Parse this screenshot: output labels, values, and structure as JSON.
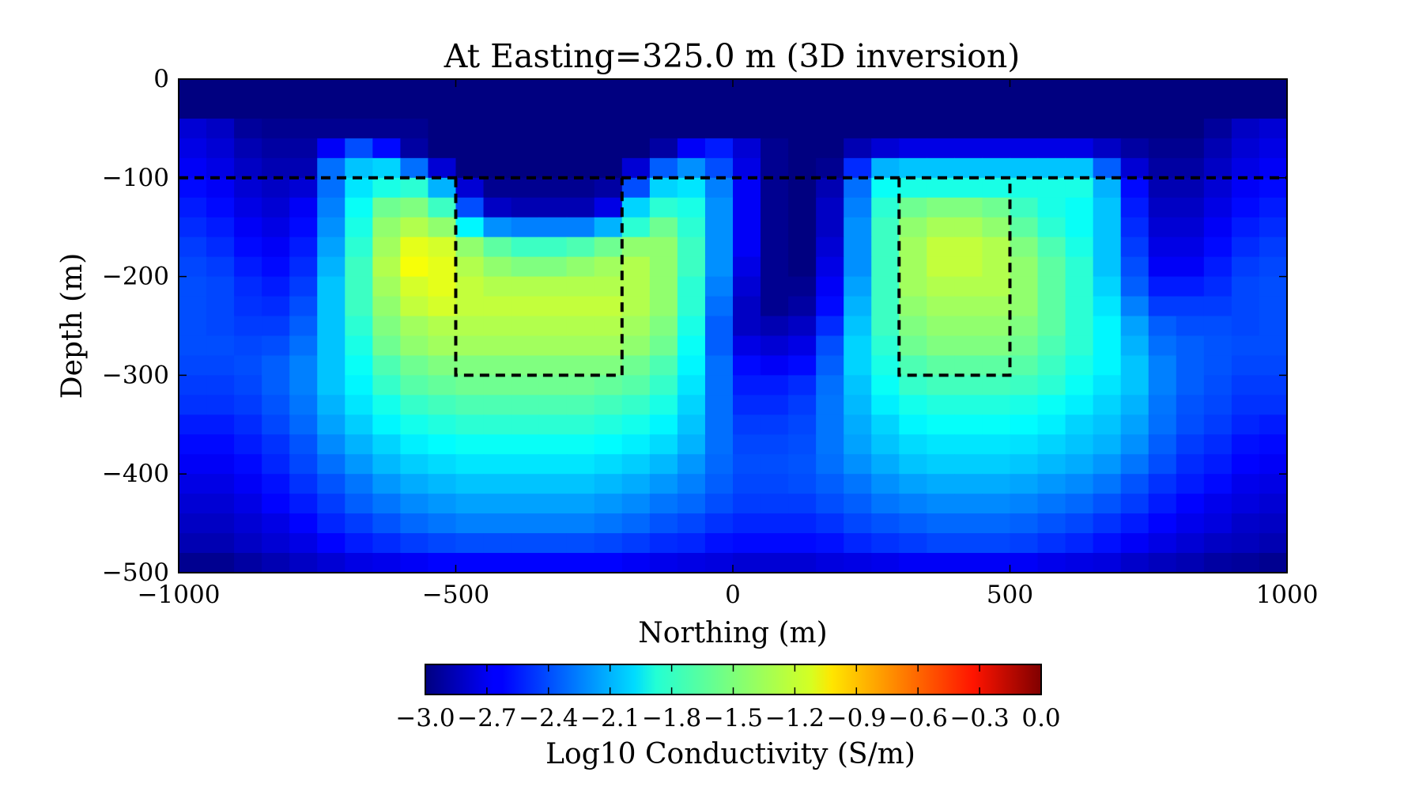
{
  "chart_data": {
    "type": "heatmap",
    "title": "At Easting=325.0 m (3D inversion)",
    "xlabel": "Northing (m)",
    "ylabel": "Depth (m)",
    "xlim": [
      -1000,
      1000
    ],
    "ylim": [
      -500,
      0
    ],
    "xticks": [
      "−1000",
      "−500",
      "0",
      "500",
      "1000"
    ],
    "yticks": [
      "0",
      "−100",
      "−200",
      "−300",
      "−400",
      "−500"
    ],
    "grid": false,
    "colormap": "jet",
    "colorbar": {
      "label": "Log10 Conductivity (S/m)",
      "range": [
        -3.0,
        0.0
      ],
      "ticks": [
        "−3.0",
        "−2.7",
        "−2.4",
        "−2.1",
        "−1.8",
        "−1.5",
        "−1.2",
        "−0.9",
        "−0.6",
        "−0.3",
        "0.0"
      ],
      "orientation": "horizontal"
    },
    "x_edges": [
      -1000,
      -950,
      -900,
      -850,
      -800,
      -750,
      -700,
      -650,
      -600,
      -550,
      -500,
      -450,
      -400,
      -350,
      -300,
      -250,
      -200,
      -150,
      -100,
      -50,
      0,
      50,
      100,
      150,
      200,
      250,
      300,
      350,
      400,
      450,
      500,
      550,
      600,
      650,
      700,
      750,
      800,
      850,
      900,
      950,
      1000
    ],
    "y_edges": [
      0,
      -40,
      -60,
      -80,
      -100,
      -120,
      -140,
      -160,
      -180,
      -200,
      -220,
      -240,
      -260,
      -280,
      -300,
      -320,
      -340,
      -360,
      -380,
      -400,
      -420,
      -440,
      -460,
      -480,
      -500
    ],
    "log_conductivity": [
      [
        -3.0,
        -3.0,
        -3.0,
        -3.0,
        -3.0,
        -3.0,
        -3.0,
        -3.0,
        -3.0,
        -3.0,
        -3.0,
        -3.0,
        -3.0,
        -3.0,
        -3.0,
        -3.0,
        -3.0,
        -3.0,
        -3.0,
        -3.0,
        -3.0,
        -3.0,
        -3.0,
        -3.0,
        -3.0,
        -3.0,
        -3.0,
        -3.0,
        -3.0,
        -3.0,
        -3.0,
        -3.0,
        -3.0,
        -3.0,
        -3.0,
        -3.0,
        -3.0,
        -3.0,
        -3.0,
        -3.0
      ],
      [
        -2.75,
        -2.8,
        -2.92,
        -2.95,
        -2.95,
        -2.95,
        -2.95,
        -2.95,
        -2.95,
        -3.0,
        -3.0,
        -3.0,
        -3.0,
        -3.0,
        -3.0,
        -3.0,
        -3.0,
        -3.0,
        -3.0,
        -3.0,
        -3.0,
        -3.0,
        -3.0,
        -3.0,
        -3.0,
        -3.0,
        -3.0,
        -3.0,
        -3.0,
        -3.0,
        -3.0,
        -3.0,
        -3.0,
        -3.0,
        -3.0,
        -3.0,
        -3.0,
        -2.92,
        -2.8,
        -2.75
      ],
      [
        -2.7,
        -2.75,
        -2.85,
        -2.9,
        -2.9,
        -2.65,
        -2.4,
        -2.6,
        -2.9,
        -3.0,
        -3.0,
        -3.0,
        -3.0,
        -3.0,
        -3.0,
        -3.0,
        -3.0,
        -2.9,
        -2.65,
        -2.55,
        -2.75,
        -2.95,
        -3.0,
        -3.0,
        -2.85,
        -2.75,
        -2.7,
        -2.7,
        -2.7,
        -2.7,
        -2.7,
        -2.7,
        -2.7,
        -2.8,
        -2.9,
        -2.95,
        -2.95,
        -2.85,
        -2.75,
        -2.7
      ],
      [
        -2.65,
        -2.7,
        -2.8,
        -2.85,
        -2.85,
        -2.3,
        -2.05,
        -2.0,
        -2.3,
        -2.75,
        -3.0,
        -3.0,
        -3.0,
        -3.0,
        -3.0,
        -3.0,
        -2.75,
        -2.35,
        -2.2,
        -2.4,
        -2.7,
        -2.95,
        -3.0,
        -2.95,
        -2.5,
        -2.1,
        -2.05,
        -2.05,
        -2.05,
        -2.05,
        -2.05,
        -2.05,
        -2.05,
        -2.35,
        -2.75,
        -2.9,
        -2.9,
        -2.8,
        -2.7,
        -2.65
      ],
      [
        -2.6,
        -2.65,
        -2.75,
        -2.8,
        -2.75,
        -2.3,
        -1.95,
        -1.8,
        -1.75,
        -2.1,
        -2.75,
        -2.95,
        -2.95,
        -2.95,
        -2.95,
        -2.9,
        -2.4,
        -2.0,
        -1.95,
        -2.25,
        -2.65,
        -2.95,
        -3.0,
        -2.85,
        -2.3,
        -1.85,
        -1.8,
        -1.8,
        -1.8,
        -1.8,
        -1.8,
        -1.8,
        -1.8,
        -2.1,
        -2.6,
        -2.85,
        -2.85,
        -2.75,
        -2.65,
        -2.6
      ],
      [
        -2.55,
        -2.6,
        -2.7,
        -2.75,
        -2.65,
        -2.25,
        -1.85,
        -1.55,
        -1.5,
        -1.7,
        -2.4,
        -2.8,
        -2.85,
        -2.85,
        -2.85,
        -2.7,
        -2.0,
        -1.75,
        -1.8,
        -2.2,
        -2.65,
        -2.95,
        -3.0,
        -2.8,
        -2.25,
        -1.75,
        -1.55,
        -1.5,
        -1.5,
        -1.55,
        -1.7,
        -1.8,
        -1.85,
        -2.05,
        -2.55,
        -2.8,
        -2.8,
        -2.7,
        -2.6,
        -2.55
      ],
      [
        -2.5,
        -2.55,
        -2.65,
        -2.7,
        -2.6,
        -2.2,
        -1.8,
        -1.45,
        -1.35,
        -1.45,
        -1.9,
        -2.2,
        -2.25,
        -2.25,
        -2.25,
        -2.1,
        -1.75,
        -1.55,
        -1.75,
        -2.2,
        -2.65,
        -2.95,
        -3.0,
        -2.8,
        -2.2,
        -1.7,
        -1.45,
        -1.38,
        -1.38,
        -1.45,
        -1.6,
        -1.75,
        -1.85,
        -2.05,
        -2.5,
        -2.75,
        -2.75,
        -2.65,
        -2.55,
        -2.5
      ],
      [
        -2.45,
        -2.5,
        -2.6,
        -2.65,
        -2.55,
        -2.15,
        -1.75,
        -1.4,
        -1.2,
        -1.25,
        -1.45,
        -1.6,
        -1.7,
        -1.7,
        -1.65,
        -1.55,
        -1.45,
        -1.45,
        -1.7,
        -2.2,
        -2.65,
        -2.95,
        -3.0,
        -2.75,
        -2.2,
        -1.7,
        -1.4,
        -1.3,
        -1.3,
        -1.35,
        -1.5,
        -1.65,
        -1.8,
        -2.05,
        -2.45,
        -2.7,
        -2.7,
        -2.6,
        -2.5,
        -2.45
      ],
      [
        -2.42,
        -2.45,
        -2.55,
        -2.6,
        -2.5,
        -2.1,
        -1.7,
        -1.35,
        -1.15,
        -1.2,
        -1.35,
        -1.45,
        -1.5,
        -1.5,
        -1.45,
        -1.4,
        -1.35,
        -1.45,
        -1.7,
        -2.2,
        -2.7,
        -2.95,
        -3.0,
        -2.7,
        -2.2,
        -1.7,
        -1.4,
        -1.3,
        -1.3,
        -1.35,
        -1.45,
        -1.6,
        -1.75,
        -2.05,
        -2.4,
        -2.65,
        -2.65,
        -2.55,
        -2.45,
        -2.42
      ],
      [
        -2.4,
        -2.42,
        -2.5,
        -2.55,
        -2.45,
        -2.05,
        -1.7,
        -1.4,
        -1.25,
        -1.2,
        -1.3,
        -1.35,
        -1.35,
        -1.35,
        -1.35,
        -1.35,
        -1.35,
        -1.45,
        -1.75,
        -2.25,
        -2.75,
        -2.95,
        -2.95,
        -2.65,
        -2.15,
        -1.7,
        -1.4,
        -1.35,
        -1.35,
        -1.35,
        -1.45,
        -1.6,
        -1.75,
        -2.0,
        -2.35,
        -2.55,
        -2.55,
        -2.5,
        -2.42,
        -2.4
      ],
      [
        -2.4,
        -2.42,
        -2.48,
        -2.5,
        -2.4,
        -2.05,
        -1.7,
        -1.45,
        -1.3,
        -1.25,
        -1.3,
        -1.3,
        -1.3,
        -1.3,
        -1.3,
        -1.3,
        -1.35,
        -1.45,
        -1.75,
        -2.3,
        -2.8,
        -2.95,
        -2.9,
        -2.6,
        -2.1,
        -1.7,
        -1.45,
        -1.4,
        -1.4,
        -1.4,
        -1.45,
        -1.6,
        -1.75,
        -1.95,
        -2.25,
        -2.45,
        -2.45,
        -2.45,
        -2.42,
        -2.4
      ],
      [
        -2.4,
        -2.42,
        -2.45,
        -2.45,
        -2.35,
        -2.05,
        -1.75,
        -1.5,
        -1.4,
        -1.35,
        -1.35,
        -1.35,
        -1.35,
        -1.35,
        -1.35,
        -1.35,
        -1.4,
        -1.5,
        -1.8,
        -2.35,
        -2.8,
        -2.85,
        -2.8,
        -2.5,
        -2.05,
        -1.7,
        -1.5,
        -1.45,
        -1.45,
        -1.45,
        -1.5,
        -1.6,
        -1.75,
        -1.9,
        -2.15,
        -2.35,
        -2.4,
        -2.4,
        -2.42,
        -2.4
      ],
      [
        -2.4,
        -2.4,
        -2.42,
        -2.4,
        -2.3,
        -2.05,
        -1.8,
        -1.55,
        -1.45,
        -1.4,
        -1.4,
        -1.4,
        -1.4,
        -1.4,
        -1.4,
        -1.4,
        -1.45,
        -1.55,
        -1.85,
        -2.35,
        -2.7,
        -2.75,
        -2.7,
        -2.4,
        -2.0,
        -1.75,
        -1.55,
        -1.5,
        -1.5,
        -1.5,
        -1.55,
        -1.65,
        -1.75,
        -1.9,
        -2.1,
        -2.3,
        -2.35,
        -2.38,
        -2.4,
        -2.4
      ],
      [
        -2.42,
        -2.42,
        -2.4,
        -2.35,
        -2.25,
        -2.05,
        -1.85,
        -1.65,
        -1.55,
        -1.5,
        -1.5,
        -1.5,
        -1.5,
        -1.5,
        -1.5,
        -1.5,
        -1.55,
        -1.65,
        -1.9,
        -2.3,
        -2.6,
        -2.65,
        -2.6,
        -2.35,
        -2.0,
        -1.8,
        -1.65,
        -1.6,
        -1.6,
        -1.6,
        -1.62,
        -1.7,
        -1.8,
        -1.9,
        -2.05,
        -2.25,
        -2.35,
        -2.38,
        -2.42,
        -2.42
      ],
      [
        -2.45,
        -2.45,
        -2.42,
        -2.35,
        -2.25,
        -2.05,
        -1.9,
        -1.72,
        -1.62,
        -1.58,
        -1.55,
        -1.55,
        -1.55,
        -1.55,
        -1.55,
        -1.58,
        -1.62,
        -1.72,
        -1.95,
        -2.3,
        -2.55,
        -2.55,
        -2.5,
        -2.3,
        -2.05,
        -1.85,
        -1.72,
        -1.68,
        -1.68,
        -1.68,
        -1.7,
        -1.75,
        -1.85,
        -1.95,
        -2.05,
        -2.25,
        -2.35,
        -2.4,
        -2.45,
        -2.45
      ],
      [
        -2.48,
        -2.48,
        -2.45,
        -2.38,
        -2.28,
        -2.1,
        -1.95,
        -1.82,
        -1.72,
        -1.68,
        -1.65,
        -1.65,
        -1.65,
        -1.65,
        -1.65,
        -1.68,
        -1.72,
        -1.8,
        -2.0,
        -2.3,
        -2.5,
        -2.5,
        -2.45,
        -2.28,
        -2.08,
        -1.92,
        -1.82,
        -1.78,
        -1.78,
        -1.78,
        -1.8,
        -1.85,
        -1.92,
        -2.0,
        -2.1,
        -2.28,
        -2.38,
        -2.42,
        -2.48,
        -2.48
      ],
      [
        -2.55,
        -2.55,
        -2.5,
        -2.42,
        -2.32,
        -2.15,
        -2.02,
        -1.9,
        -1.82,
        -1.78,
        -1.75,
        -1.75,
        -1.75,
        -1.75,
        -1.75,
        -1.78,
        -1.82,
        -1.9,
        -2.05,
        -2.3,
        -2.45,
        -2.45,
        -2.42,
        -2.28,
        -2.12,
        -2.0,
        -1.9,
        -1.86,
        -1.86,
        -1.86,
        -1.88,
        -1.92,
        -2.0,
        -2.05,
        -2.15,
        -2.3,
        -2.4,
        -2.45,
        -2.52,
        -2.55
      ],
      [
        -2.6,
        -2.6,
        -2.55,
        -2.48,
        -2.38,
        -2.22,
        -2.1,
        -2.0,
        -1.92,
        -1.88,
        -1.85,
        -1.85,
        -1.85,
        -1.85,
        -1.85,
        -1.88,
        -1.92,
        -1.98,
        -2.1,
        -2.3,
        -2.42,
        -2.42,
        -2.4,
        -2.28,
        -2.15,
        -2.05,
        -1.98,
        -1.95,
        -1.95,
        -1.95,
        -1.96,
        -2.0,
        -2.05,
        -2.1,
        -2.2,
        -2.35,
        -2.45,
        -2.5,
        -2.58,
        -2.6
      ],
      [
        -2.65,
        -2.65,
        -2.6,
        -2.52,
        -2.42,
        -2.3,
        -2.18,
        -2.08,
        -2.02,
        -1.98,
        -1.95,
        -1.95,
        -1.95,
        -1.95,
        -1.95,
        -1.98,
        -2.02,
        -2.08,
        -2.18,
        -2.32,
        -2.4,
        -2.4,
        -2.38,
        -2.3,
        -2.2,
        -2.12,
        -2.05,
        -2.02,
        -2.02,
        -2.02,
        -2.04,
        -2.08,
        -2.12,
        -2.18,
        -2.28,
        -2.4,
        -2.5,
        -2.55,
        -2.62,
        -2.65
      ],
      [
        -2.7,
        -2.7,
        -2.65,
        -2.58,
        -2.48,
        -2.38,
        -2.28,
        -2.18,
        -2.12,
        -2.08,
        -2.05,
        -2.05,
        -2.05,
        -2.05,
        -2.05,
        -2.08,
        -2.12,
        -2.18,
        -2.25,
        -2.35,
        -2.42,
        -2.42,
        -2.4,
        -2.35,
        -2.28,
        -2.2,
        -2.15,
        -2.12,
        -2.12,
        -2.12,
        -2.14,
        -2.18,
        -2.22,
        -2.28,
        -2.38,
        -2.48,
        -2.55,
        -2.6,
        -2.68,
        -2.7
      ],
      [
        -2.75,
        -2.75,
        -2.7,
        -2.62,
        -2.55,
        -2.45,
        -2.35,
        -2.28,
        -2.22,
        -2.18,
        -2.15,
        -2.15,
        -2.15,
        -2.15,
        -2.15,
        -2.18,
        -2.22,
        -2.28,
        -2.32,
        -2.4,
        -2.45,
        -2.45,
        -2.45,
        -2.4,
        -2.35,
        -2.28,
        -2.25,
        -2.22,
        -2.22,
        -2.22,
        -2.24,
        -2.28,
        -2.32,
        -2.38,
        -2.45,
        -2.55,
        -2.62,
        -2.68,
        -2.72,
        -2.75
      ],
      [
        -2.8,
        -2.8,
        -2.75,
        -2.7,
        -2.62,
        -2.52,
        -2.45,
        -2.38,
        -2.32,
        -2.28,
        -2.25,
        -2.25,
        -2.25,
        -2.25,
        -2.25,
        -2.28,
        -2.32,
        -2.38,
        -2.42,
        -2.48,
        -2.52,
        -2.52,
        -2.52,
        -2.48,
        -2.42,
        -2.38,
        -2.35,
        -2.32,
        -2.32,
        -2.32,
        -2.34,
        -2.38,
        -2.42,
        -2.48,
        -2.55,
        -2.62,
        -2.68,
        -2.72,
        -2.78,
        -2.8
      ],
      [
        -2.85,
        -2.85,
        -2.8,
        -2.75,
        -2.7,
        -2.62,
        -2.55,
        -2.5,
        -2.45,
        -2.42,
        -2.4,
        -2.4,
        -2.4,
        -2.4,
        -2.4,
        -2.42,
        -2.45,
        -2.5,
        -2.52,
        -2.58,
        -2.6,
        -2.6,
        -2.6,
        -2.58,
        -2.52,
        -2.48,
        -2.45,
        -2.42,
        -2.42,
        -2.42,
        -2.44,
        -2.48,
        -2.52,
        -2.58,
        -2.65,
        -2.7,
        -2.75,
        -2.8,
        -2.82,
        -2.85
      ],
      [
        -2.95,
        -2.95,
        -2.9,
        -2.85,
        -2.8,
        -2.75,
        -2.7,
        -2.68,
        -2.65,
        -2.62,
        -2.62,
        -2.62,
        -2.62,
        -2.62,
        -2.62,
        -2.62,
        -2.65,
        -2.68,
        -2.7,
        -2.72,
        -2.75,
        -2.75,
        -2.75,
        -2.72,
        -2.7,
        -2.68,
        -2.65,
        -2.65,
        -2.65,
        -2.65,
        -2.65,
        -2.68,
        -2.7,
        -2.72,
        -2.78,
        -2.82,
        -2.85,
        -2.9,
        -2.92,
        -2.95
      ]
    ],
    "outlines": [
      {
        "x": [
          -1000,
          1000
        ],
        "y": [
          -100,
          -100
        ]
      },
      {
        "x": [
          -500,
          -500,
          -200,
          -200
        ],
        "y": [
          -100,
          -300,
          -300,
          -100
        ]
      },
      {
        "x": [
          300,
          300,
          500,
          500
        ],
        "y": [
          -100,
          -300,
          -300,
          -100
        ]
      }
    ]
  }
}
